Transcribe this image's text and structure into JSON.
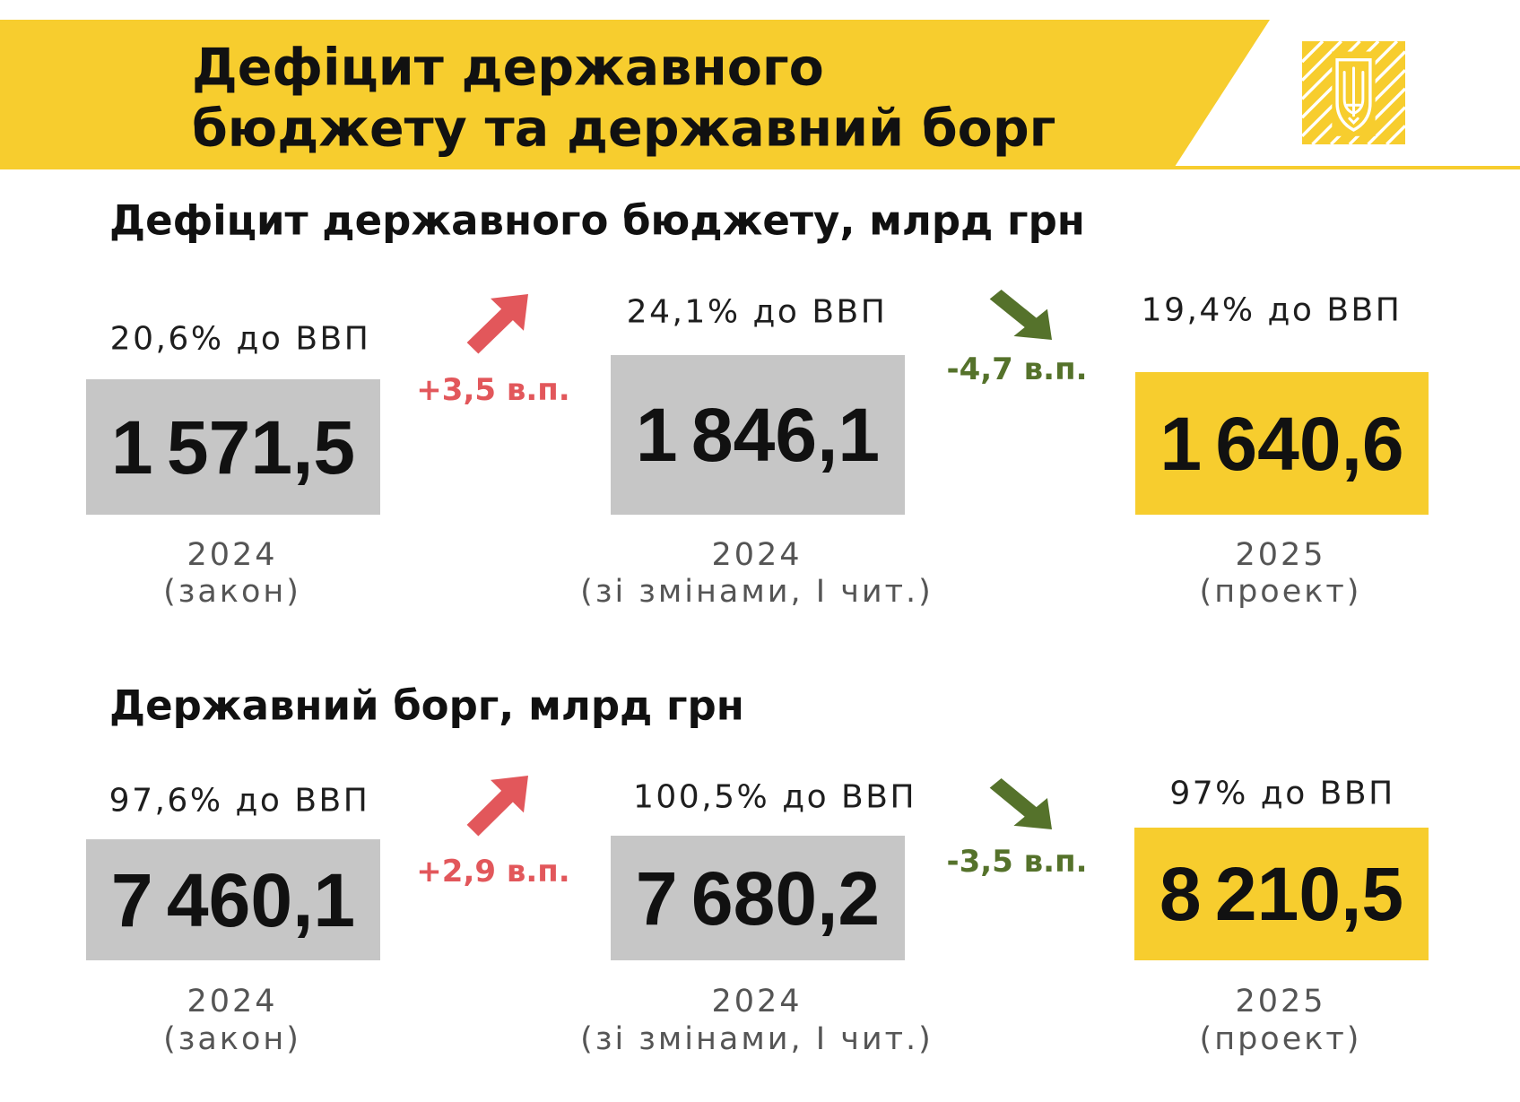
{
  "colors": {
    "brand_yellow": "#f7cd2e",
    "value_box_gray": "#c6c6c6",
    "increase_red": "#e2575b",
    "decrease_green": "#55722b",
    "caption_gray": "#555555",
    "text_black": "#111111"
  },
  "header": {
    "title_line1": "Дефіцит державного",
    "title_line2": "бюджету та державний борг",
    "logo_icon": "trident-emblem-icon"
  },
  "sections": [
    {
      "heading": "Дефіцит державного бюджету, млрд грн",
      "cards": [
        {
          "gdp_share": "20,6% до ВВП",
          "value": "1 571,5",
          "year": "2024",
          "status": "(закон)"
        },
        {
          "gdp_share": "24,1% до ВВП",
          "value": "1 846,1",
          "year": "2024",
          "status": "(зі змінами, І чит.)"
        },
        {
          "gdp_share": "19,4% до ВВП",
          "value": "1 640,6",
          "year": "2025",
          "status": "(проект)"
        }
      ],
      "changes": [
        {
          "label": "+3,5 в.п.",
          "icon": "arrow-up-right-icon"
        },
        {
          "label": "-4,7 в.п.",
          "icon": "arrow-down-right-icon"
        }
      ]
    },
    {
      "heading": "Державний борг, млрд грн",
      "cards": [
        {
          "gdp_share": "97,6% до ВВП",
          "value": "7 460,1",
          "year": "2024",
          "status": "(закон)"
        },
        {
          "gdp_share": "100,5% до ВВП",
          "value": "7 680,2",
          "year": "2024",
          "status": "(зі змінами, І чит.)"
        },
        {
          "gdp_share": "97% до ВВП",
          "value": "8 210,5",
          "year": "2025",
          "status": "(проект)"
        }
      ],
      "changes": [
        {
          "label": "+2,9 в.п.",
          "icon": "arrow-up-right-icon"
        },
        {
          "label": "-3,5 в.п.",
          "icon": "arrow-down-right-icon"
        }
      ]
    }
  ]
}
